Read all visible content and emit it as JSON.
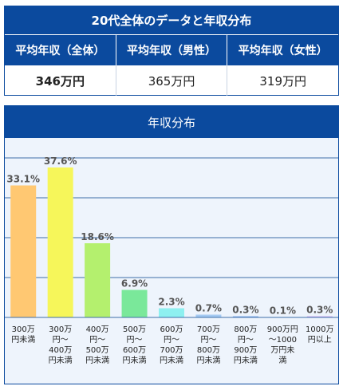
{
  "summary": {
    "title": "20代全体のデータと年収分布",
    "headers": [
      "平均年収（全体）",
      "平均年収（男性）",
      "平均年収（女性）"
    ],
    "values": [
      "346万円",
      "365万円",
      "319万円"
    ]
  },
  "chart_data": {
    "type": "bar",
    "title": "年収分布",
    "xlabel": "",
    "ylabel": "",
    "categories": [
      [
        "300万",
        "円未満"
      ],
      [
        "300万",
        "円～",
        "400万",
        "円未満"
      ],
      [
        "400万",
        "円～",
        "500万",
        "円未満"
      ],
      [
        "500万",
        "円～",
        "600万",
        "円未満"
      ],
      [
        "600万",
        "円～",
        "700万",
        "円未満"
      ],
      [
        "700万",
        "円～",
        "800万",
        "円未満"
      ],
      [
        "800万",
        "円～",
        "900万",
        "円未満"
      ],
      [
        "900万円",
        "～1000",
        "万円未",
        "満"
      ],
      [
        "1000万",
        "円以上"
      ]
    ],
    "values": [
      33.1,
      37.6,
      18.6,
      6.9,
      2.3,
      0.7,
      0.3,
      0.1,
      0.3
    ],
    "value_labels": [
      "33.1%",
      "37.6%",
      "18.6%",
      "6.9%",
      "2.3%",
      "0.7%",
      "0.3%",
      "0.1%",
      "0.3%"
    ],
    "colors": [
      "#ffc872",
      "#f6f65a",
      "#b4f06e",
      "#7ae89a",
      "#8ef0f0",
      "#a4caf2",
      "#8fb6ee",
      "#b4b4f0",
      "#d2b4f0"
    ],
    "ylim": [
      0,
      40
    ],
    "grid": true
  }
}
